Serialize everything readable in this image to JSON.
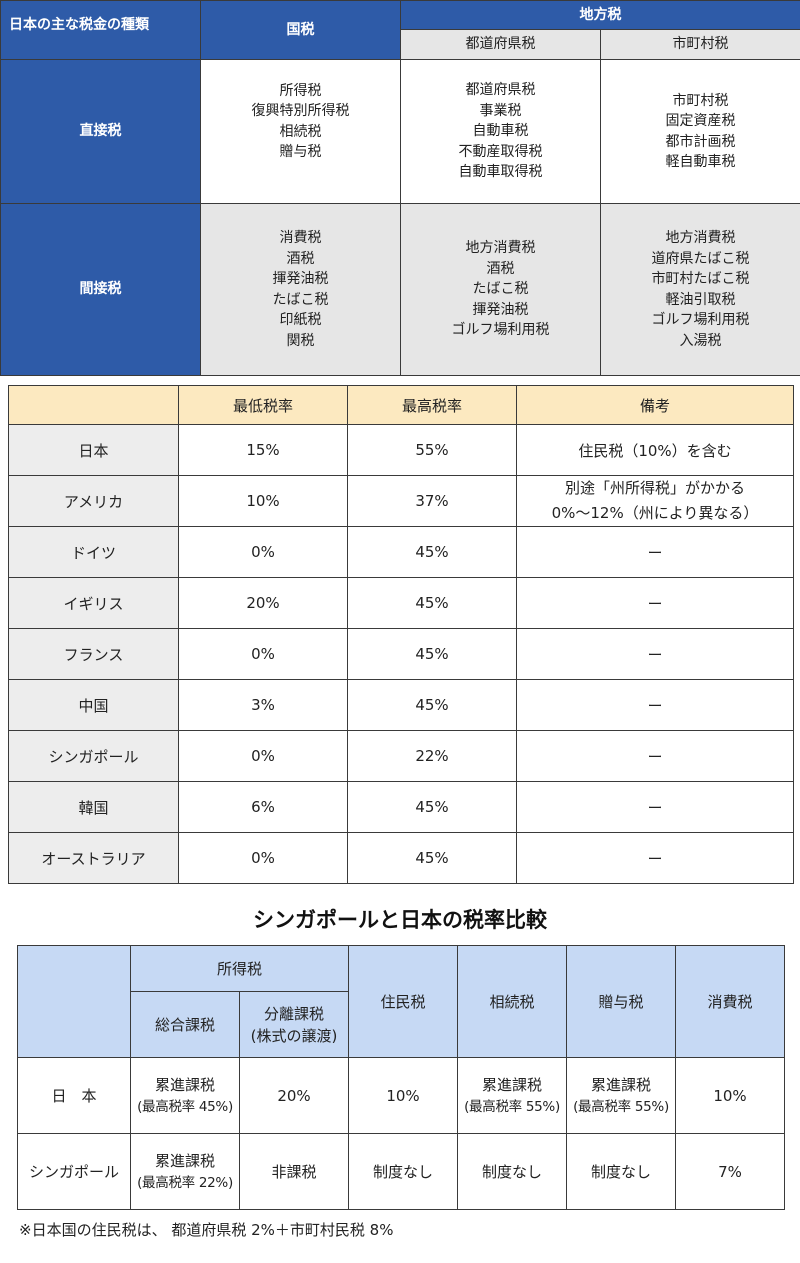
{
  "table1": {
    "corner": "日本の主な税金の種類",
    "national": "国税",
    "local": "地方税",
    "prefecture": "都道府県税",
    "municipal": "市町村税",
    "rows": [
      {
        "label": "直接税",
        "national": [
          "所得税",
          "復興特別所得税",
          "相続税",
          "贈与税"
        ],
        "prefecture": [
          "都道府県税",
          "事業税",
          "自動車税",
          "不動産取得税",
          "自動車取得税"
        ],
        "municipal": [
          "市町村税",
          "固定資産税",
          "都市計画税",
          "軽自動車税"
        ]
      },
      {
        "label": "間接税",
        "national": [
          "消費税",
          "酒税",
          "揮発油税",
          "たばこ税",
          "印紙税",
          "関税"
        ],
        "prefecture": [
          "地方消費税",
          "酒税",
          "たばこ税",
          "揮発油税",
          "ゴルフ場利用税"
        ],
        "municipal": [
          "地方消費税",
          "道府県たばこ税",
          "市町村たばこ税",
          "軽油引取税",
          "ゴルフ場利用税",
          "入湯税"
        ]
      }
    ]
  },
  "table2": {
    "headers": [
      "",
      "最低税率",
      "最高税率",
      "備考"
    ],
    "rows": [
      {
        "country": "日本",
        "min": "15%",
        "max": "55%",
        "note": [
          "住民税（10%）を含む"
        ]
      },
      {
        "country": "アメリカ",
        "min": "10%",
        "max": "37%",
        "note": [
          "別途「州所得税」がかかる",
          "0%～12%（州により異なる）"
        ]
      },
      {
        "country": "ドイツ",
        "min": "0%",
        "max": "45%",
        "note": [
          "ー"
        ]
      },
      {
        "country": "イギリス",
        "min": "20%",
        "max": "45%",
        "note": [
          "ー"
        ]
      },
      {
        "country": "フランス",
        "min": "0%",
        "max": "45%",
        "note": [
          "ー"
        ]
      },
      {
        "country": "中国",
        "min": "3%",
        "max": "45%",
        "note": [
          "ー"
        ]
      },
      {
        "country": "シンガポール",
        "min": "0%",
        "max": "22%",
        "note": [
          "ー"
        ]
      },
      {
        "country": "韓国",
        "min": "6%",
        "max": "45%",
        "note": [
          "ー"
        ]
      },
      {
        "country": "オーストラリア",
        "min": "0%",
        "max": "45%",
        "note": [
          "ー"
        ]
      }
    ]
  },
  "table3": {
    "title": "シンガポールと日本の税率比較",
    "h_income": "所得税",
    "h_comprehensive": "総合課税",
    "h_separate": [
      "分離課税",
      "(株式の譲渡)"
    ],
    "h_resident": "住民税",
    "h_inheritance": "相続税",
    "h_gift": "贈与税",
    "h_consumption": "消費税",
    "rows": [
      {
        "label": "日　本",
        "comprehensive": [
          "累進課税",
          "(最高税率 45%)"
        ],
        "separate": "20%",
        "resident": "10%",
        "inheritance": [
          "累進課税",
          "(最高税率 55%)"
        ],
        "gift": [
          "累進課税",
          "(最高税率 55%)"
        ],
        "consumption": "10%"
      },
      {
        "label": "シンガポール",
        "comprehensive": [
          "累進課税",
          "(最高税率 22%)"
        ],
        "separate": "非課税",
        "resident": "制度なし",
        "inheritance": "制度なし",
        "gift": "制度なし",
        "consumption": "7%"
      }
    ]
  },
  "footnote": "※日本国の住民税は、 都道府県税 2%＋市町村民税 8%"
}
